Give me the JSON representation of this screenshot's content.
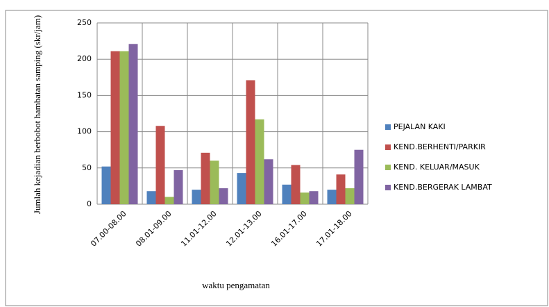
{
  "chart_data": {
    "type": "bar",
    "y_label": "Jumlah kejadian berbobot hambatan samping (skr/jam)",
    "x_label": "waktu pengamatan",
    "categories": [
      "07.00-08.00",
      "08.01-09.00",
      "11.01-12.00",
      "12.01-13.00",
      "16.01-17.00",
      "17.01-18.00"
    ],
    "series": [
      {
        "name": "PEJALAN KAKI",
        "color": "#4f81bd",
        "values": [
          52,
          18,
          20,
          43,
          27,
          20
        ]
      },
      {
        "name": "KEND.BERHENTI/PARKIR",
        "color": "#c0504d",
        "values": [
          211,
          108,
          71,
          171,
          54,
          41
        ]
      },
      {
        "name": "KEND. KELUAR/MASUK",
        "color": "#9bbb59",
        "values": [
          211,
          10,
          60,
          117,
          16,
          22
        ]
      },
      {
        "name": "KEND.BERGERAK LAMBAT",
        "color": "#8064a2",
        "values": [
          221,
          47,
          22,
          62,
          18,
          75
        ]
      }
    ],
    "ylim": [
      0,
      250
    ],
    "yticks": [
      0,
      50,
      100,
      150,
      200,
      250
    ],
    "grid": true,
    "legend": "right"
  }
}
